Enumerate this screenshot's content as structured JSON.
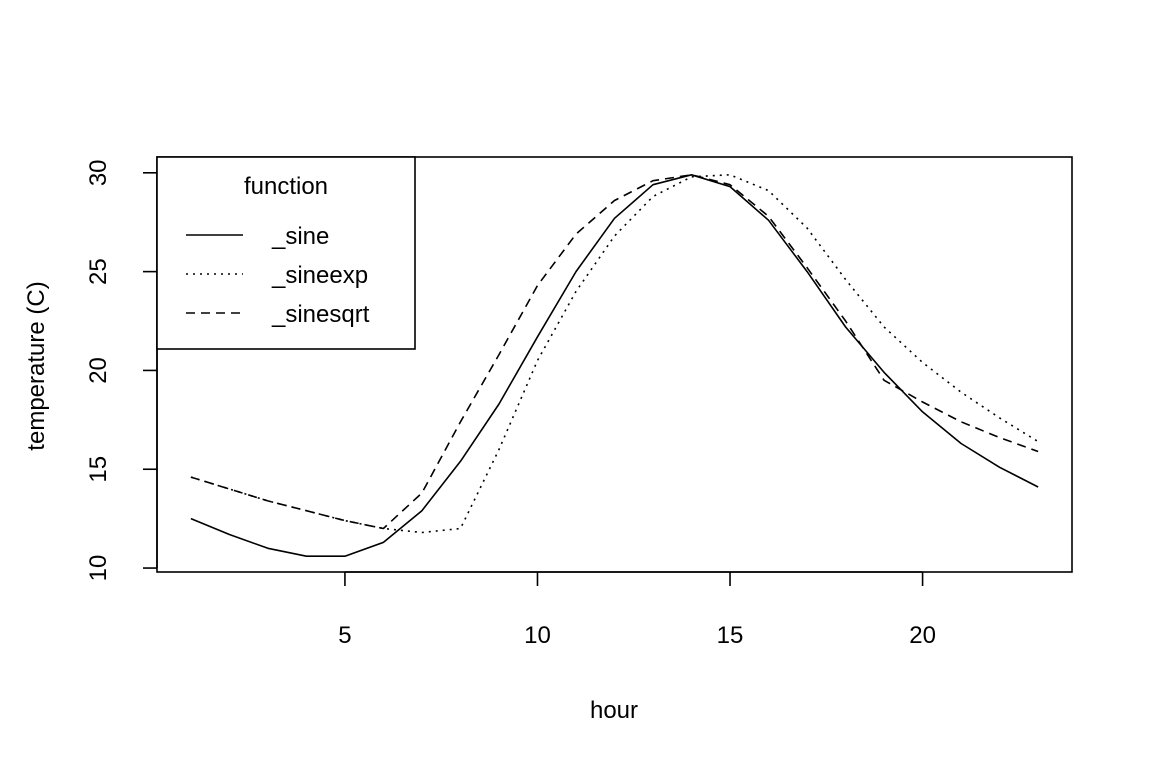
{
  "chart_data": {
    "type": "line",
    "xlabel": "hour",
    "ylabel": "temperature (C)",
    "xlim": [
      0.12,
      23.88
    ],
    "ylim": [
      9.8,
      30.8
    ],
    "xticks": [
      5,
      10,
      15,
      20
    ],
    "yticks": [
      10,
      15,
      20,
      25,
      30
    ],
    "x": [
      1,
      2,
      3,
      4,
      5,
      6,
      7,
      8,
      9,
      10,
      11,
      12,
      13,
      14,
      15,
      16,
      17,
      18,
      19,
      20,
      21,
      22,
      23
    ],
    "legend": {
      "title": "function",
      "placement": "top-left"
    },
    "series": [
      {
        "name": "_sine",
        "style": "solid",
        "values": [
          12.5,
          11.7,
          11.0,
          10.6,
          10.6,
          11.3,
          12.9,
          15.4,
          18.3,
          21.7,
          25.0,
          27.7,
          29.4,
          29.9,
          29.3,
          27.6,
          25.0,
          22.2,
          19.9,
          17.9,
          16.3,
          15.1,
          14.1
        ]
      },
      {
        "name": "_sineexp",
        "style": "dotted",
        "values": [
          14.6,
          14.0,
          13.4,
          12.9,
          12.4,
          12.0,
          11.8,
          12.0,
          16.0,
          20.5,
          24.0,
          26.8,
          28.8,
          29.8,
          29.9,
          29.1,
          27.2,
          24.6,
          22.2,
          20.4,
          18.9,
          17.6,
          16.4
        ]
      },
      {
        "name": "_sinesqrt",
        "style": "dashed",
        "values": [
          14.6,
          14.0,
          13.4,
          12.9,
          12.4,
          12.0,
          13.8,
          17.4,
          20.8,
          24.3,
          26.9,
          28.6,
          29.6,
          29.9,
          29.4,
          27.8,
          25.2,
          22.5,
          19.5,
          18.4,
          17.4,
          16.6,
          15.9
        ]
      }
    ]
  }
}
